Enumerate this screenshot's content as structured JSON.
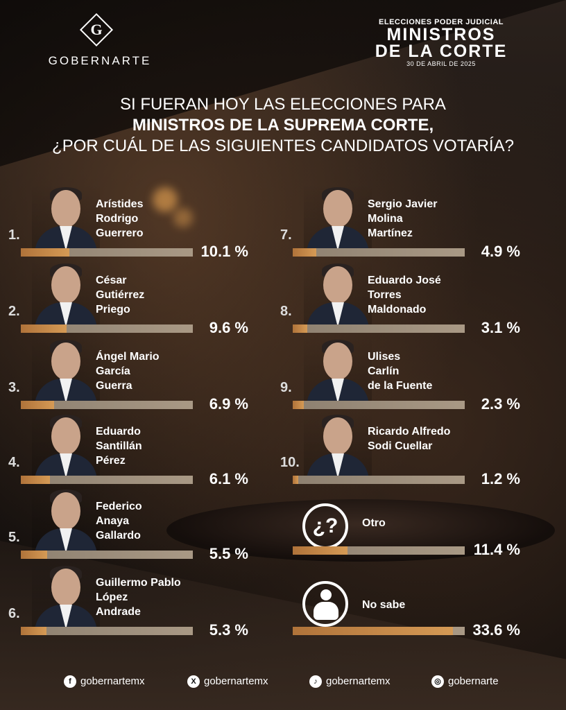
{
  "logo": {
    "letter": "G",
    "text": "GOBERNARTE"
  },
  "header": {
    "line1": "ELECCIONES PODER JUDICIAL",
    "line2a": "MINISTROS",
    "line2b": "DE LA CORTE",
    "date": "30 DE ABRIL DE 2025"
  },
  "question": {
    "line1": "SI FUERAN HOY LAS ELECCIONES PARA",
    "line2": "MINISTROS DE LA SUPREMA CORTE,",
    "line3": "¿POR CUÁL DE LAS SIGUIENTES CANDIDATOS VOTARÍA?"
  },
  "chart_data": {
    "type": "bar",
    "categories": [
      "Arístides Rodrigo Guerrero",
      "César Gutiérrez Priego",
      "Ángel Mario García Guerra",
      "Eduardo Santillán Pérez",
      "Federico Anaya Gallardo",
      "Guillermo Pablo López Andrade",
      "Sergio Javier Molina Martínez",
      "Eduardo José Torres Maldonado",
      "Ulises Carlín de la Fuente",
      "Ricardo Alfredo Sodi Cuellar",
      "Otro",
      "No sabe"
    ],
    "values": [
      10.1,
      9.6,
      6.9,
      6.1,
      5.5,
      5.3,
      4.9,
      3.1,
      2.3,
      1.2,
      11.4,
      33.6
    ],
    "unit": "%"
  },
  "candidates": [
    {
      "rank": "1.",
      "name_lines": [
        "Arístides",
        "Rodrigo",
        "Guerrero"
      ],
      "pct": "10.1 %"
    },
    {
      "rank": "2.",
      "name_lines": [
        "César",
        "Gutiérrez",
        "Priego"
      ],
      "pct": "9.6 %"
    },
    {
      "rank": "3.",
      "name_lines": [
        "Ángel Mario",
        "García",
        "Guerra"
      ],
      "pct": "6.9 %"
    },
    {
      "rank": "4.",
      "name_lines": [
        "Eduardo",
        "Santillán",
        "Pérez"
      ],
      "pct": "6.1 %"
    },
    {
      "rank": "5.",
      "name_lines": [
        "Federico",
        "Anaya",
        "Gallardo"
      ],
      "pct": "5.5 %"
    },
    {
      "rank": "6.",
      "name_lines": [
        "Guillermo Pablo",
        "López",
        "Andrade"
      ],
      "pct": "5.3 %"
    },
    {
      "rank": "7.",
      "name_lines": [
        "Sergio Javier",
        "Molina",
        "Martínez"
      ],
      "pct": "4.9 %"
    },
    {
      "rank": "8.",
      "name_lines": [
        "Eduardo José",
        "Torres",
        "Maldonado"
      ],
      "pct": "3.1 %"
    },
    {
      "rank": "9.",
      "name_lines": [
        "Ulises",
        "Carlín",
        "de la Fuente"
      ],
      "pct": "2.3 %"
    },
    {
      "rank": "10.",
      "name_lines": [
        "Ricardo Alfredo",
        "Sodi Cuellar"
      ],
      "pct": "1.2 %"
    }
  ],
  "others": [
    {
      "label": "Otro",
      "icon": "question-icon",
      "glyph": "¿?",
      "pct": "11.4 %"
    },
    {
      "label": "No sabe",
      "icon": "shrug-person-icon",
      "glyph": "",
      "pct": "33.6 %"
    }
  ],
  "social": [
    {
      "icon": "facebook-icon",
      "glyph": "f",
      "handle": "gobernartemx"
    },
    {
      "icon": "x-icon",
      "glyph": "X",
      "handle": "gobernartemx"
    },
    {
      "icon": "tiktok-icon",
      "glyph": "♪",
      "handle": "gobernartemx"
    },
    {
      "icon": "instagram-icon",
      "glyph": "◎",
      "handle": "gobernarte"
    }
  ],
  "colors": {
    "bar_fill": "#c5884a",
    "bar_track": "#9a8c7a",
    "text": "#ffffff"
  }
}
